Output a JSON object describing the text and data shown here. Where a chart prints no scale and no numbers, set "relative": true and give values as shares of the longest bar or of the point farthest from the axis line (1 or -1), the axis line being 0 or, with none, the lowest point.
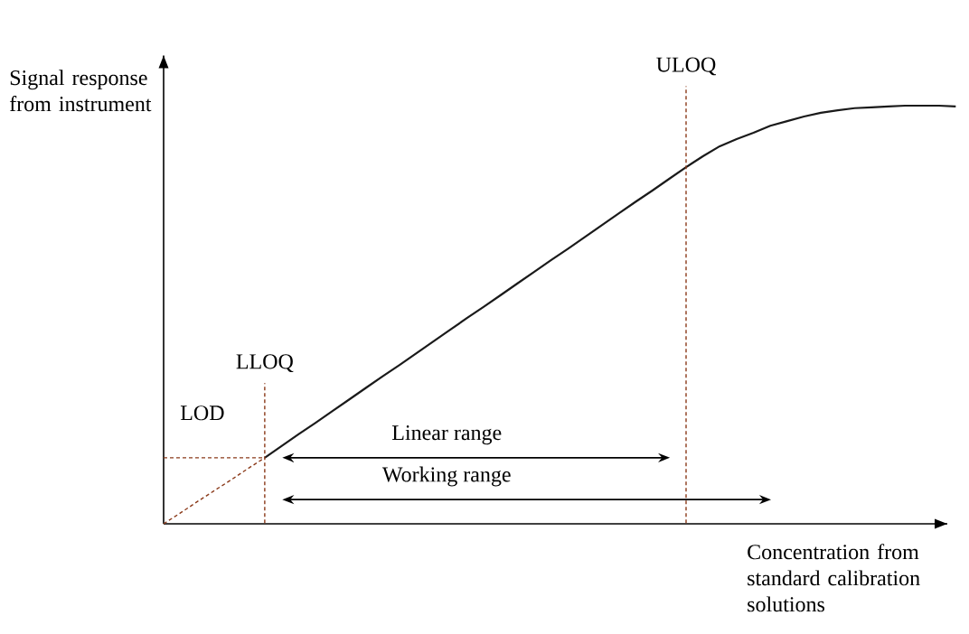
{
  "chart_data": {
    "type": "line",
    "relative": true,
    "xlabel": "Concentration from standard calibration solutions",
    "ylabel": "Signal response from instrument",
    "categories": [
      null,
      null,
      null,
      null,
      null,
      null,
      null,
      null,
      null,
      null,
      null,
      null,
      null,
      null,
      null,
      null,
      null,
      null,
      null,
      null,
      null,
      null,
      null,
      null,
      null,
      null,
      null,
      null,
      null,
      null,
      null,
      null,
      null,
      null,
      null,
      null,
      null,
      null,
      null,
      null,
      null,
      null,
      null,
      null,
      null,
      null,
      null,
      null
    ],
    "series": [
      {
        "color": "#1a1a1a",
        "line_style": "solid",
        "values": [
          null,
          null,
          null,
          null,
          null,
          null,
          0.158,
          0.186,
          0.214,
          0.241,
          0.269,
          0.297,
          0.325,
          0.353,
          0.38,
          0.408,
          0.436,
          0.464,
          0.492,
          0.519,
          0.547,
          0.575,
          0.603,
          0.631,
          0.658,
          0.686,
          0.714,
          0.742,
          0.77,
          0.797,
          0.825,
          0.853,
          0.879,
          0.903,
          0.92,
          0.935,
          0.952,
          0.963,
          0.974,
          0.983,
          0.989,
          0.994,
          0.996,
          0.998,
          1.0,
          1.0,
          1.0,
          0.998
        ]
      },
      {
        "color": "#8b3a1a",
        "line_style": "dashed",
        "values": [
          0,
          0.026,
          0.053,
          0.079,
          0.105,
          0.132,
          0.158,
          null,
          null,
          null,
          null,
          null,
          null,
          null,
          null,
          null,
          null,
          null,
          null,
          null,
          null,
          null,
          null,
          null,
          null,
          null,
          null,
          null,
          null,
          null,
          null,
          null,
          null,
          null,
          null,
          null,
          null,
          null,
          null,
          null,
          null,
          null,
          null,
          null,
          null,
          null,
          null,
          null
        ]
      },
      {
        "color": "#8b3a1a",
        "line_style": "dashed",
        "values": [
          0.158,
          0.158,
          0.158,
          0.158,
          0.158,
          0.158,
          0.158,
          null,
          null,
          null,
          null,
          null,
          null,
          null,
          null,
          null,
          null,
          null,
          null,
          null,
          null,
          null,
          null,
          null,
          null,
          null,
          null,
          null,
          null,
          null,
          null,
          null,
          null,
          null,
          null,
          null,
          null,
          null,
          null,
          null,
          null,
          null,
          null,
          null,
          null,
          null,
          null,
          null
        ]
      }
    ],
    "annotations": [
      "LLOQ",
      "ULOQ",
      "LOD",
      "Linear range",
      "Working range"
    ]
  }
}
